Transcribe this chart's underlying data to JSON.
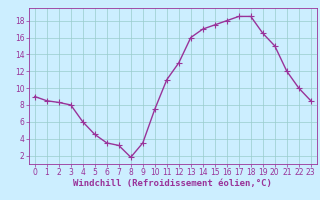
{
  "x_plot": [
    0,
    1,
    2,
    3,
    4,
    5,
    6,
    7,
    8,
    9,
    10,
    11,
    12,
    13,
    14,
    15,
    16,
    17,
    18,
    19,
    20,
    21,
    22,
    23
  ],
  "y_plot": [
    9,
    8.5,
    8.3,
    8,
    6,
    4.5,
    3.5,
    3.2,
    1.8,
    3.5,
    7.5,
    11,
    13,
    16,
    17,
    17.5,
    18,
    18.5,
    18.5,
    16.5,
    15,
    12,
    10,
    8.5
  ],
  "line_color": "#993399",
  "marker_color": "#993399",
  "bg_color": "#cceeff",
  "grid_color": "#99cccc",
  "xlabel": "Windchill (Refroidissement éolien,°C)",
  "xlim": [
    -0.5,
    23.5
  ],
  "ylim": [
    1,
    19.5
  ],
  "yticks": [
    2,
    4,
    6,
    8,
    10,
    12,
    14,
    16,
    18
  ],
  "xticks": [
    0,
    1,
    2,
    3,
    4,
    5,
    6,
    7,
    8,
    9,
    10,
    11,
    12,
    13,
    14,
    15,
    16,
    17,
    18,
    19,
    20,
    21,
    22,
    23
  ],
  "xlabel_fontsize": 6.5,
  "tick_fontsize": 5.5,
  "line_width": 1.0,
  "marker_size": 2.5
}
